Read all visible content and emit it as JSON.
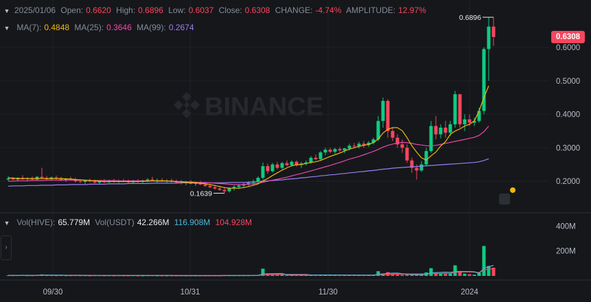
{
  "header": {
    "date": "2025/01/06",
    "open_label": "Open:",
    "open_value": "0.6620",
    "high_label": "High:",
    "high_value": "0.6896",
    "low_label": "Low:",
    "low_value": "0.6037",
    "close_label": "Close:",
    "close_value": "0.6308",
    "change_label": "CHANGE:",
    "change_value": "-4.74%",
    "amplitude_label": "AMPLITUDE:",
    "amplitude_value": "12.97%"
  },
  "ma_legend": {
    "ma7_label": "MA(7):",
    "ma7_value": "0.4848",
    "ma25_label": "MA(25):",
    "ma25_value": "0.3646",
    "ma99_label": "MA(99):",
    "ma99_value": "0.2674"
  },
  "volume_legend": {
    "hive_label": "Vol(HIVE):",
    "hive_value": "65.779M",
    "usdt_label": "Vol(USDT)",
    "usdt_value": "42.266M",
    "ma1_value": "116.908M",
    "ma2_value": "104.928M"
  },
  "watermark": "BINANCE",
  "current_price": "0.6308",
  "colors": {
    "up": "#0ecb81",
    "down": "#f6465d",
    "ma7": "#f0b90b",
    "ma25": "#e84aab",
    "ma99": "#9b7ff5",
    "vol_ma1": "#4fb8d8",
    "vol_ma2": "#f6465d"
  },
  "icons": {
    "collapse": "chevron-right-icon",
    "legend_toggle": "chevron-down-icon",
    "notification": "alert-icon"
  },
  "chart_data": {
    "type": "candlestick",
    "price_axis": {
      "ticks": [
        "0.6000",
        "0.5000",
        "0.4000",
        "0.3000",
        "0.2000"
      ],
      "ylim": [
        0.13,
        0.72
      ]
    },
    "volume_axis": {
      "ticks": [
        "400M",
        "200M"
      ],
      "ylim": [
        0,
        440
      ]
    },
    "x_ticks": [
      "09/30",
      "10/31",
      "11/30",
      "2024"
    ],
    "high_marker": "0.6896",
    "low_marker": "0.1639",
    "candles": [
      [
        0.205,
        0.215,
        0.201,
        0.208,
        5
      ],
      [
        0.208,
        0.213,
        0.203,
        0.205,
        4
      ],
      [
        0.205,
        0.212,
        0.2,
        0.21,
        5
      ],
      [
        0.21,
        0.218,
        0.204,
        0.206,
        6
      ],
      [
        0.206,
        0.212,
        0.201,
        0.209,
        4
      ],
      [
        0.209,
        0.214,
        0.203,
        0.205,
        4
      ],
      [
        0.205,
        0.215,
        0.202,
        0.213,
        7
      ],
      [
        0.213,
        0.24,
        0.207,
        0.21,
        12
      ],
      [
        0.21,
        0.216,
        0.203,
        0.206,
        5
      ],
      [
        0.206,
        0.214,
        0.201,
        0.211,
        5
      ],
      [
        0.211,
        0.217,
        0.205,
        0.208,
        4
      ],
      [
        0.208,
        0.213,
        0.2,
        0.203,
        5
      ],
      [
        0.203,
        0.21,
        0.198,
        0.207,
        4
      ],
      [
        0.207,
        0.213,
        0.202,
        0.204,
        4
      ],
      [
        0.204,
        0.21,
        0.196,
        0.2,
        5
      ],
      [
        0.2,
        0.206,
        0.195,
        0.198,
        4
      ],
      [
        0.198,
        0.205,
        0.192,
        0.202,
        4
      ],
      [
        0.202,
        0.208,
        0.197,
        0.199,
        3
      ],
      [
        0.199,
        0.205,
        0.193,
        0.196,
        4
      ],
      [
        0.196,
        0.203,
        0.191,
        0.2,
        4
      ],
      [
        0.2,
        0.206,
        0.195,
        0.197,
        3
      ],
      [
        0.197,
        0.204,
        0.194,
        0.201,
        4
      ],
      [
        0.201,
        0.207,
        0.196,
        0.198,
        3
      ],
      [
        0.198,
        0.205,
        0.194,
        0.202,
        4
      ],
      [
        0.202,
        0.207,
        0.197,
        0.199,
        3
      ],
      [
        0.199,
        0.205,
        0.195,
        0.197,
        3
      ],
      [
        0.197,
        0.204,
        0.193,
        0.201,
        4
      ],
      [
        0.201,
        0.206,
        0.196,
        0.198,
        3
      ],
      [
        0.198,
        0.205,
        0.194,
        0.202,
        3
      ],
      [
        0.202,
        0.209,
        0.197,
        0.205,
        4
      ],
      [
        0.205,
        0.213,
        0.2,
        0.201,
        4
      ],
      [
        0.201,
        0.208,
        0.196,
        0.203,
        3
      ],
      [
        0.203,
        0.209,
        0.198,
        0.199,
        3
      ],
      [
        0.199,
        0.206,
        0.194,
        0.202,
        3
      ],
      [
        0.202,
        0.208,
        0.197,
        0.198,
        3
      ],
      [
        0.198,
        0.205,
        0.193,
        0.196,
        3
      ],
      [
        0.196,
        0.203,
        0.19,
        0.194,
        3
      ],
      [
        0.194,
        0.201,
        0.188,
        0.197,
        3
      ],
      [
        0.197,
        0.203,
        0.191,
        0.192,
        3
      ],
      [
        0.192,
        0.199,
        0.186,
        0.195,
        3
      ],
      [
        0.195,
        0.201,
        0.189,
        0.19,
        3
      ],
      [
        0.19,
        0.197,
        0.183,
        0.186,
        3
      ],
      [
        0.186,
        0.193,
        0.179,
        0.182,
        3
      ],
      [
        0.182,
        0.189,
        0.175,
        0.178,
        3
      ],
      [
        0.178,
        0.186,
        0.172,
        0.174,
        3
      ],
      [
        0.174,
        0.182,
        0.164,
        0.17,
        4
      ],
      [
        0.17,
        0.182,
        0.166,
        0.179,
        4
      ],
      [
        0.179,
        0.188,
        0.172,
        0.183,
        4
      ],
      [
        0.183,
        0.192,
        0.177,
        0.187,
        4
      ],
      [
        0.187,
        0.196,
        0.181,
        0.191,
        4
      ],
      [
        0.191,
        0.2,
        0.185,
        0.195,
        4
      ],
      [
        0.195,
        0.205,
        0.189,
        0.199,
        5
      ],
      [
        0.199,
        0.215,
        0.194,
        0.21,
        6
      ],
      [
        0.21,
        0.256,
        0.205,
        0.245,
        58
      ],
      [
        0.245,
        0.252,
        0.222,
        0.23,
        12
      ],
      [
        0.23,
        0.255,
        0.226,
        0.25,
        9
      ],
      [
        0.25,
        0.258,
        0.236,
        0.24,
        8
      ],
      [
        0.24,
        0.258,
        0.236,
        0.254,
        8
      ],
      [
        0.254,
        0.262,
        0.244,
        0.248,
        7
      ],
      [
        0.248,
        0.262,
        0.244,
        0.258,
        7
      ],
      [
        0.258,
        0.262,
        0.244,
        0.249,
        6
      ],
      [
        0.249,
        0.258,
        0.24,
        0.253,
        7
      ],
      [
        0.253,
        0.262,
        0.247,
        0.256,
        7
      ],
      [
        0.256,
        0.275,
        0.252,
        0.27,
        8
      ],
      [
        0.27,
        0.28,
        0.262,
        0.266,
        7
      ],
      [
        0.266,
        0.29,
        0.262,
        0.286,
        8
      ],
      [
        0.286,
        0.3,
        0.278,
        0.294,
        8
      ],
      [
        0.294,
        0.3,
        0.284,
        0.288,
        7
      ],
      [
        0.288,
        0.3,
        0.282,
        0.296,
        7
      ],
      [
        0.296,
        0.302,
        0.287,
        0.292,
        6
      ],
      [
        0.292,
        0.3,
        0.284,
        0.298,
        6
      ],
      [
        0.298,
        0.312,
        0.292,
        0.306,
        7
      ],
      [
        0.306,
        0.314,
        0.298,
        0.304,
        6
      ],
      [
        0.304,
        0.318,
        0.298,
        0.312,
        6
      ],
      [
        0.312,
        0.32,
        0.3,
        0.308,
        6
      ],
      [
        0.308,
        0.32,
        0.302,
        0.315,
        6
      ],
      [
        0.315,
        0.33,
        0.31,
        0.325,
        8
      ],
      [
        0.325,
        0.395,
        0.32,
        0.38,
        38
      ],
      [
        0.38,
        0.45,
        0.36,
        0.44,
        20
      ],
      [
        0.44,
        0.445,
        0.33,
        0.35,
        30
      ],
      [
        0.35,
        0.36,
        0.32,
        0.33,
        14
      ],
      [
        0.33,
        0.34,
        0.3,
        0.31,
        12
      ],
      [
        0.31,
        0.325,
        0.285,
        0.3,
        9
      ],
      [
        0.3,
        0.31,
        0.255,
        0.262,
        12
      ],
      [
        0.262,
        0.27,
        0.225,
        0.24,
        10
      ],
      [
        0.24,
        0.25,
        0.205,
        0.232,
        9
      ],
      [
        0.232,
        0.26,
        0.228,
        0.25,
        10
      ],
      [
        0.25,
        0.3,
        0.245,
        0.29,
        28
      ],
      [
        0.29,
        0.38,
        0.285,
        0.365,
        62
      ],
      [
        0.365,
        0.395,
        0.325,
        0.34,
        24
      ],
      [
        0.34,
        0.37,
        0.328,
        0.36,
        20
      ],
      [
        0.36,
        0.38,
        0.33,
        0.345,
        16
      ],
      [
        0.345,
        0.38,
        0.335,
        0.37,
        20
      ],
      [
        0.37,
        0.47,
        0.36,
        0.46,
        85
      ],
      [
        0.46,
        0.46,
        0.36,
        0.37,
        38
      ],
      [
        0.37,
        0.4,
        0.35,
        0.385,
        18
      ],
      [
        0.385,
        0.4,
        0.365,
        0.375,
        14
      ],
      [
        0.375,
        0.39,
        0.365,
        0.38,
        10
      ],
      [
        0.38,
        0.42,
        0.375,
        0.41,
        24
      ],
      [
        0.41,
        0.6,
        0.4,
        0.595,
        240
      ],
      [
        0.595,
        0.689,
        0.5,
        0.662,
        80
      ],
      [
        0.662,
        0.69,
        0.604,
        0.631,
        66
      ]
    ],
    "ma7": [
      0.21,
      0.209,
      0.208,
      0.208,
      0.208,
      0.208,
      0.208,
      0.208,
      0.208,
      0.208,
      0.208,
      0.208,
      0.207,
      0.207,
      0.205,
      0.204,
      0.203,
      0.202,
      0.201,
      0.2,
      0.199,
      0.199,
      0.199,
      0.199,
      0.199,
      0.199,
      0.199,
      0.199,
      0.2,
      0.2,
      0.201,
      0.201,
      0.201,
      0.201,
      0.2,
      0.199,
      0.198,
      0.197,
      0.196,
      0.195,
      0.194,
      0.192,
      0.19,
      0.187,
      0.184,
      0.181,
      0.179,
      0.179,
      0.179,
      0.181,
      0.184,
      0.188,
      0.192,
      0.201,
      0.208,
      0.217,
      0.225,
      0.233,
      0.24,
      0.246,
      0.249,
      0.25,
      0.253,
      0.256,
      0.258,
      0.262,
      0.268,
      0.274,
      0.279,
      0.284,
      0.29,
      0.296,
      0.3,
      0.304,
      0.307,
      0.31,
      0.315,
      0.326,
      0.344,
      0.355,
      0.36,
      0.36,
      0.351,
      0.33,
      0.306,
      0.287,
      0.27,
      0.263,
      0.276,
      0.287,
      0.305,
      0.318,
      0.34,
      0.35,
      0.356,
      0.365,
      0.37,
      0.38,
      0.41,
      0.45,
      0.485
    ],
    "ma25": [
      0.2,
      0.2,
      0.201,
      0.201,
      0.201,
      0.202,
      0.202,
      0.202,
      0.203,
      0.203,
      0.203,
      0.203,
      0.203,
      0.203,
      0.203,
      0.203,
      0.203,
      0.202,
      0.202,
      0.202,
      0.202,
      0.202,
      0.202,
      0.201,
      0.201,
      0.201,
      0.201,
      0.201,
      0.201,
      0.201,
      0.201,
      0.2,
      0.2,
      0.2,
      0.2,
      0.199,
      0.199,
      0.198,
      0.198,
      0.197,
      0.196,
      0.196,
      0.195,
      0.194,
      0.193,
      0.192,
      0.191,
      0.19,
      0.19,
      0.19,
      0.191,
      0.192,
      0.194,
      0.197,
      0.2,
      0.203,
      0.206,
      0.209,
      0.212,
      0.216,
      0.22,
      0.223,
      0.227,
      0.231,
      0.235,
      0.239,
      0.243,
      0.247,
      0.252,
      0.256,
      0.261,
      0.266,
      0.27,
      0.274,
      0.279,
      0.284,
      0.289,
      0.295,
      0.302,
      0.307,
      0.311,
      0.314,
      0.316,
      0.315,
      0.313,
      0.31,
      0.308,
      0.306,
      0.306,
      0.307,
      0.31,
      0.313,
      0.316,
      0.319,
      0.322,
      0.325,
      0.328,
      0.331,
      0.337,
      0.348,
      0.365
    ],
    "ma99": [
      0.185,
      0.186,
      0.186,
      0.186,
      0.187,
      0.187,
      0.187,
      0.188,
      0.188,
      0.188,
      0.189,
      0.189,
      0.189,
      0.19,
      0.19,
      0.19,
      0.19,
      0.191,
      0.191,
      0.191,
      0.191,
      0.192,
      0.192,
      0.192,
      0.192,
      0.193,
      0.193,
      0.193,
      0.193,
      0.193,
      0.194,
      0.194,
      0.194,
      0.194,
      0.194,
      0.194,
      0.195,
      0.195,
      0.195,
      0.195,
      0.195,
      0.195,
      0.195,
      0.195,
      0.195,
      0.195,
      0.196,
      0.196,
      0.196,
      0.196,
      0.197,
      0.198,
      0.199,
      0.2,
      0.201,
      0.202,
      0.203,
      0.204,
      0.206,
      0.207,
      0.208,
      0.21,
      0.211,
      0.213,
      0.214,
      0.216,
      0.217,
      0.219,
      0.22,
      0.222,
      0.223,
      0.225,
      0.226,
      0.228,
      0.229,
      0.231,
      0.232,
      0.234,
      0.236,
      0.237,
      0.239,
      0.24,
      0.241,
      0.242,
      0.243,
      0.244,
      0.245,
      0.246,
      0.247,
      0.248,
      0.249,
      0.25,
      0.251,
      0.252,
      0.253,
      0.254,
      0.255,
      0.256,
      0.258,
      0.262,
      0.267
    ]
  }
}
